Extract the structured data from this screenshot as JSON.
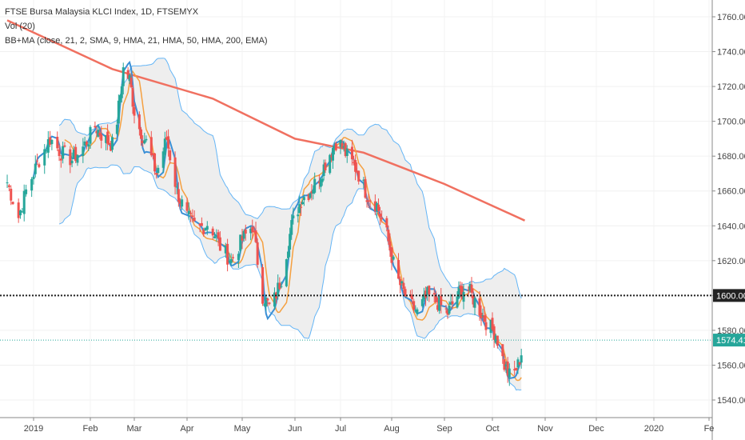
{
  "legend": {
    "title": "FTSE Bursa Malaysia KLCI Index, 1D, FTSEMYX",
    "vol": "Vol (20)",
    "indicators": "BB+MA (close, 21, 2, SMA, 9, HMA, 21, HMA, 50, HMA, 200, EMA)"
  },
  "colors": {
    "up": "#26a69a",
    "down": "#ef5350",
    "bb_line": "#64b5f6",
    "bb_fill": "#eeeeee",
    "hma9": "#3a8fd6",
    "hma21": "#f5a040",
    "ema200": "#f07060",
    "last_price": "#26a69a",
    "hline": "#222222"
  },
  "chart_data": {
    "type": "candlestick",
    "ylim": [
      1530,
      1765
    ],
    "yticks": [
      "1540.00",
      "1560.00",
      "1580.00",
      "1600.00",
      "1620.00",
      "1640.00",
      "1660.00",
      "1680.00",
      "1700.00",
      "1720.00",
      "1740.00",
      "1760.00"
    ],
    "xticks": [
      "2019",
      "Feb",
      "Mar",
      "Apr",
      "May",
      "Jun",
      "Jul",
      "Aug",
      "Sep",
      "Oct",
      "Nov",
      "Dec",
      "2020",
      "Fe"
    ],
    "horizontal_line": {
      "value": 1600.0,
      "label": "1600.00"
    },
    "last_price": {
      "value": 1574.41,
      "label": "1574.41"
    },
    "close_path": [
      {
        "date": "2018-12-18",
        "close": 1665
      },
      {
        "date": "2018-12-24",
        "close": 1645
      },
      {
        "date": "2018-12-28",
        "close": 1660
      },
      {
        "date": "2019-01-04",
        "close": 1678
      },
      {
        "date": "2019-01-10",
        "close": 1690
      },
      {
        "date": "2019-01-16",
        "close": 1682
      },
      {
        "date": "2019-01-22",
        "close": 1678
      },
      {
        "date": "2019-01-28",
        "close": 1685
      },
      {
        "date": "2019-02-04",
        "close": 1697
      },
      {
        "date": "2019-02-10",
        "close": 1690
      },
      {
        "date": "2019-02-16",
        "close": 1686
      },
      {
        "date": "2019-02-22",
        "close": 1730
      },
      {
        "date": "2019-02-26",
        "close": 1724
      },
      {
        "date": "2019-03-02",
        "close": 1700
      },
      {
        "date": "2019-03-08",
        "close": 1688
      },
      {
        "date": "2019-03-14",
        "close": 1670
      },
      {
        "date": "2019-03-20",
        "close": 1690
      },
      {
        "date": "2019-03-26",
        "close": 1660
      },
      {
        "date": "2019-04-01",
        "close": 1645
      },
      {
        "date": "2019-04-07",
        "close": 1638
      },
      {
        "date": "2019-04-13",
        "close": 1642
      },
      {
        "date": "2019-04-19",
        "close": 1628
      },
      {
        "date": "2019-04-25",
        "close": 1620
      },
      {
        "date": "2019-05-01",
        "close": 1632
      },
      {
        "date": "2019-05-07",
        "close": 1640
      },
      {
        "date": "2019-05-13",
        "close": 1600
      },
      {
        "date": "2019-05-18",
        "close": 1592
      },
      {
        "date": "2019-05-24",
        "close": 1610
      },
      {
        "date": "2019-05-30",
        "close": 1640
      },
      {
        "date": "2019-06-05",
        "close": 1655
      },
      {
        "date": "2019-06-11",
        "close": 1660
      },
      {
        "date": "2019-06-17",
        "close": 1668
      },
      {
        "date": "2019-06-23",
        "close": 1680
      },
      {
        "date": "2019-06-29",
        "close": 1690
      },
      {
        "date": "2019-07-05",
        "close": 1680
      },
      {
        "date": "2019-07-11",
        "close": 1672
      },
      {
        "date": "2019-07-17",
        "close": 1658
      },
      {
        "date": "2019-07-23",
        "close": 1652
      },
      {
        "date": "2019-07-29",
        "close": 1635
      },
      {
        "date": "2019-08-04",
        "close": 1610
      },
      {
        "date": "2019-08-10",
        "close": 1598
      },
      {
        "date": "2019-08-16",
        "close": 1590
      },
      {
        "date": "2019-08-22",
        "close": 1600
      },
      {
        "date": "2019-08-28",
        "close": 1596
      },
      {
        "date": "2019-09-03",
        "close": 1590
      },
      {
        "date": "2019-09-09",
        "close": 1600
      },
      {
        "date": "2019-09-15",
        "close": 1605
      },
      {
        "date": "2019-09-21",
        "close": 1595
      },
      {
        "date": "2019-09-27",
        "close": 1585
      },
      {
        "date": "2019-10-03",
        "close": 1578
      },
      {
        "date": "2019-10-08",
        "close": 1560
      },
      {
        "date": "2019-10-12",
        "close": 1552
      },
      {
        "date": "2019-10-16",
        "close": 1560
      },
      {
        "date": "2019-10-20",
        "close": 1574.41
      }
    ],
    "ema200": [
      {
        "date": "2018-12-18",
        "value": 1758
      },
      {
        "date": "2019-02-15",
        "value": 1730
      },
      {
        "date": "2019-04-15",
        "value": 1713
      },
      {
        "date": "2019-06-01",
        "value": 1690
      },
      {
        "date": "2019-07-15",
        "value": 1682
      },
      {
        "date": "2019-09-01",
        "value": 1664
      },
      {
        "date": "2019-10-20",
        "value": 1643
      }
    ]
  }
}
